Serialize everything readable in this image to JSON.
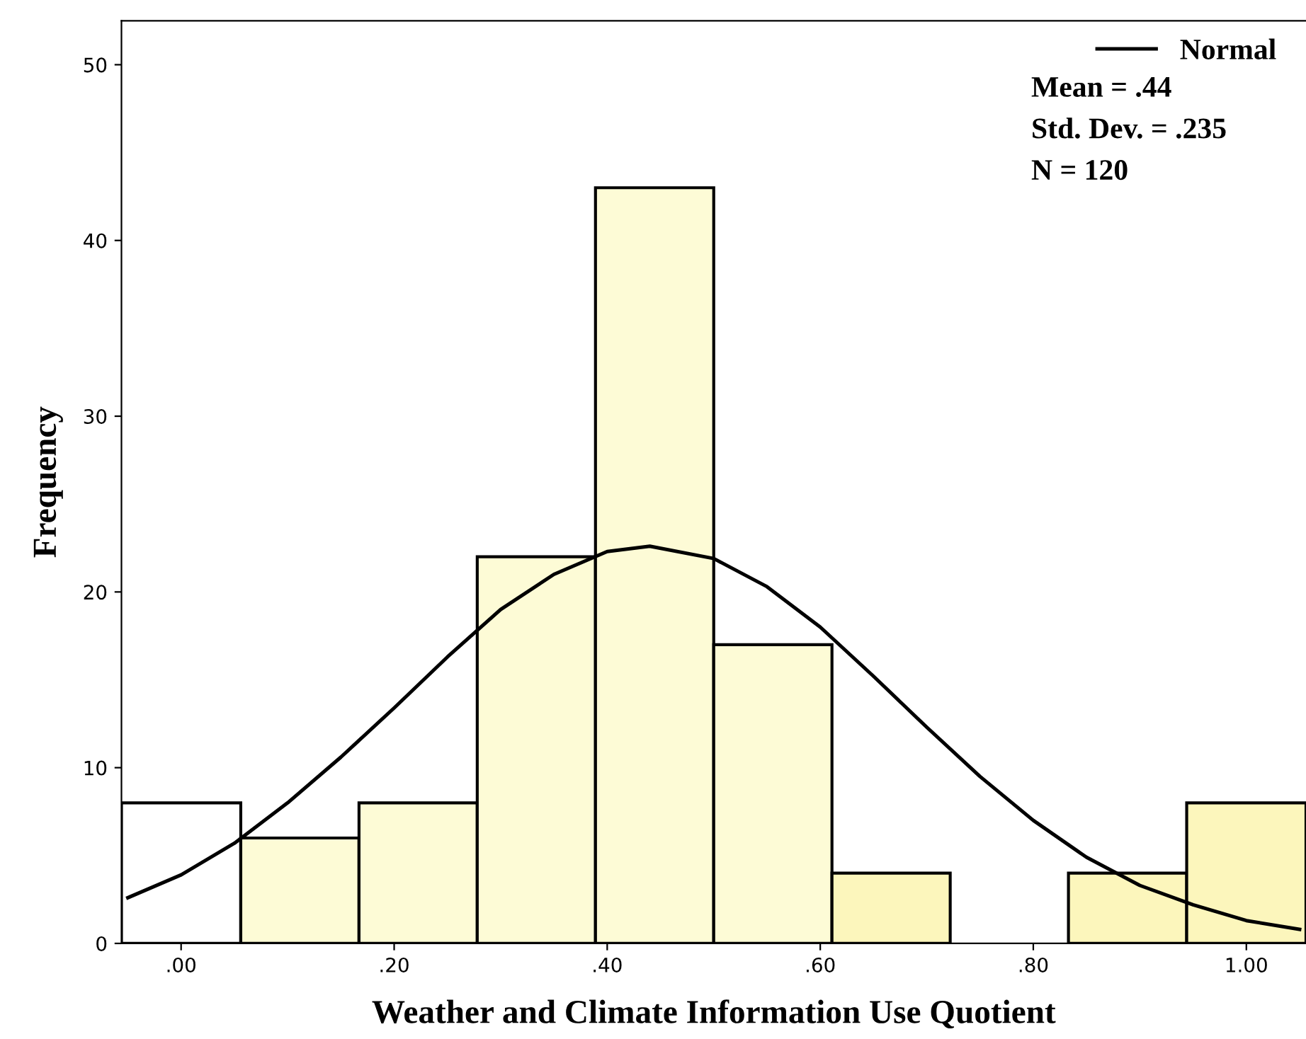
{
  "chart_data": {
    "type": "histogram",
    "xlabel": "Weather and Climate Information Use Quotient",
    "ylabel": "Frequency",
    "xlim": [
      -0.056,
      1.056
    ],
    "ylim": [
      0,
      52.5
    ],
    "xticks": [
      {
        "value": 0,
        "label": ".00"
      },
      {
        "value": 0.2,
        "label": ".20"
      },
      {
        "value": 0.4,
        "label": ".40"
      },
      {
        "value": 0.6,
        "label": ".60"
      },
      {
        "value": 0.8,
        "label": ".80"
      },
      {
        "value": 1.0,
        "label": "1.00"
      }
    ],
    "yticks": [
      0,
      10,
      20,
      30,
      40,
      50
    ],
    "legend": "top right",
    "annotations": [
      "Mean = .44",
      "Std. Dev. = .235",
      "N = 120"
    ],
    "series": [
      {
        "bins": [
          -0.056,
          0.056,
          0.167,
          0.278,
          0.389,
          0.5,
          0.611,
          0.722,
          0.833,
          0.944,
          1.056
        ],
        "values": [
          8,
          6,
          8,
          22,
          43,
          17,
          4,
          0,
          4,
          8
        ],
        "colors": [
          "#ffffff",
          "#fdfbd6",
          "#fdfbd6",
          "#fdfbd6",
          "#fdfbd6",
          "#fdfbd6",
          "#fcf6bc",
          "#fcf6bc",
          "#fcf6bc",
          "#fcf6bc"
        ]
      },
      {
        "type": "line",
        "name": "Normal",
        "color": "#000000",
        "x": [
          -0.05,
          0.0,
          0.05,
          0.1,
          0.15,
          0.2,
          0.25,
          0.3,
          0.35,
          0.4,
          0.44,
          0.5,
          0.55,
          0.6,
          0.65,
          0.7,
          0.75,
          0.8,
          0.85,
          0.9,
          0.95,
          1.0,
          1.05
        ],
        "values": [
          2.6,
          3.9,
          5.7,
          8.0,
          10.6,
          13.4,
          16.3,
          19.0,
          21.0,
          22.3,
          22.6,
          21.9,
          20.3,
          18.0,
          15.2,
          12.3,
          9.5,
          7.0,
          4.9,
          3.3,
          2.2,
          1.3,
          0.8
        ]
      }
    ]
  }
}
